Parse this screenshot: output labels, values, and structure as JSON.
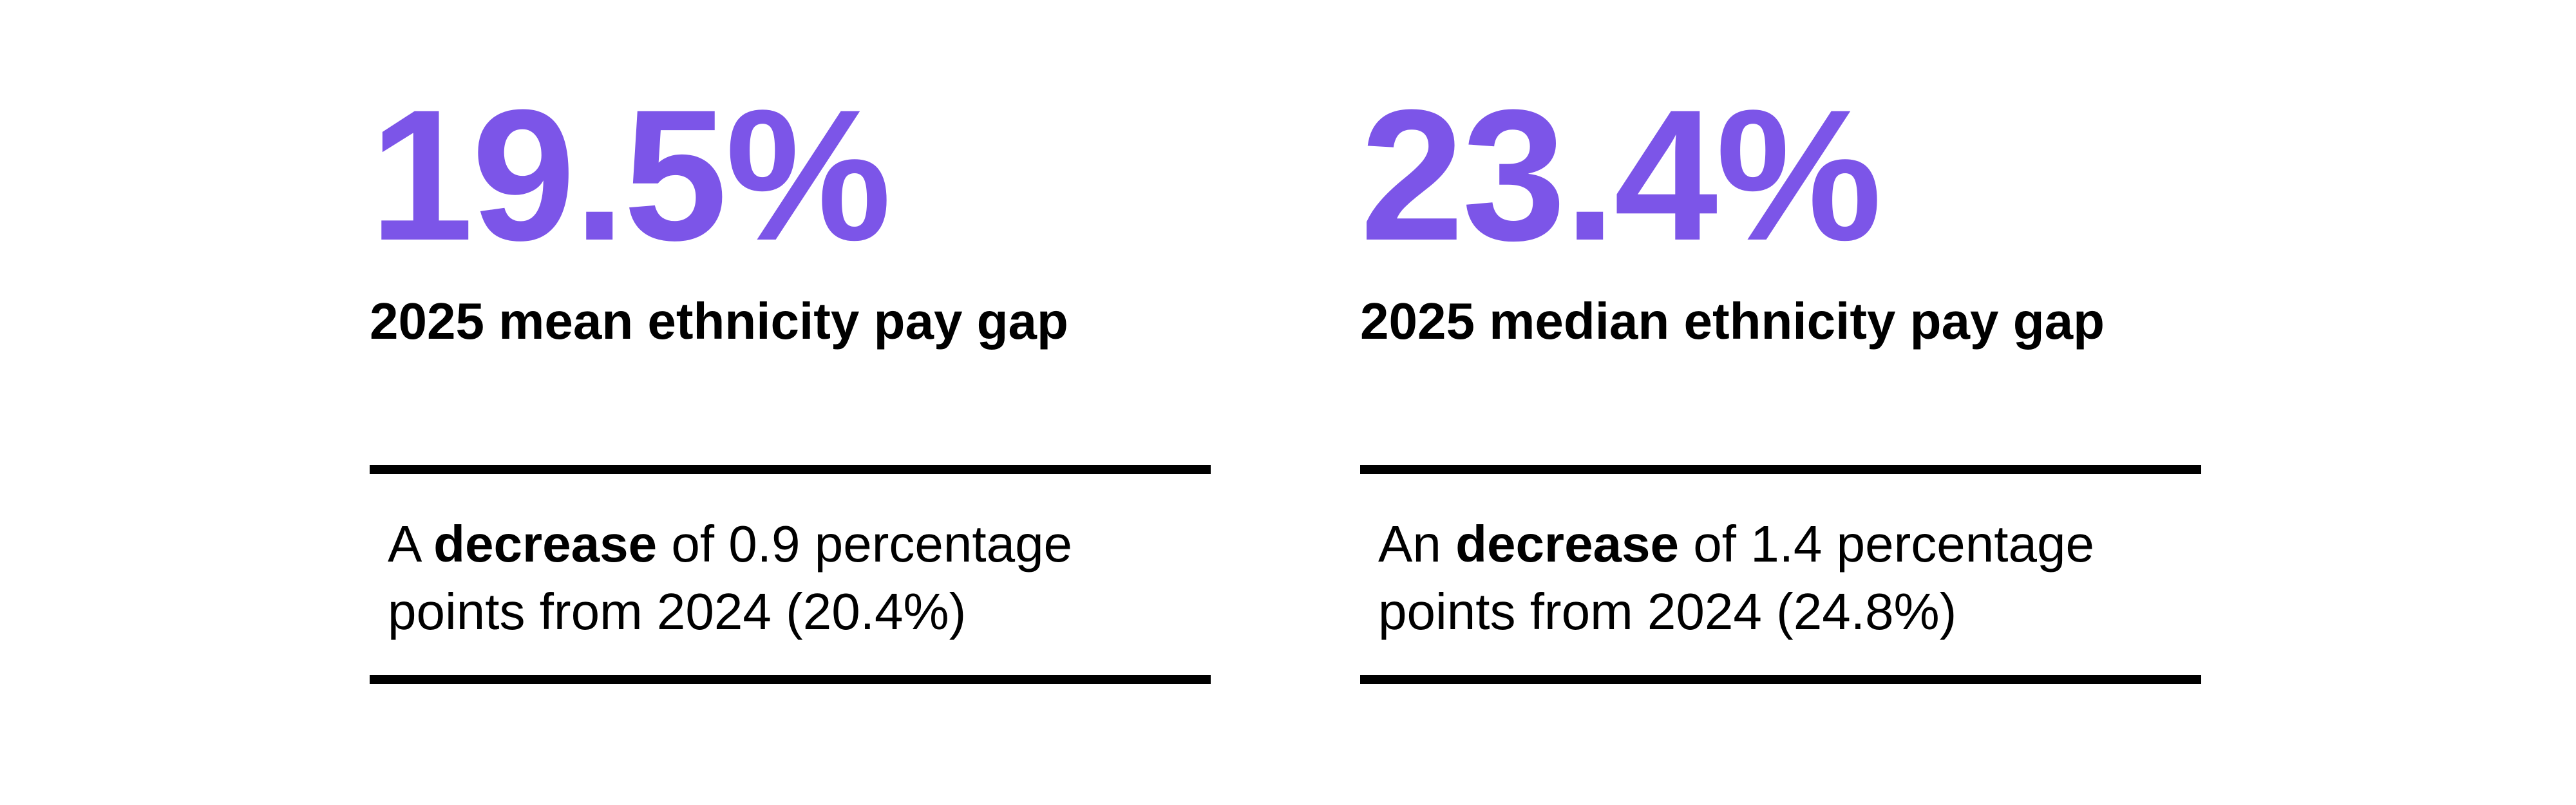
{
  "colors": {
    "accent_purple": "#7C55E8",
    "text_black": "#000000",
    "rule_black": "#000000",
    "background": "#FFFFFF"
  },
  "stats": [
    {
      "value": "19.5%",
      "label": "2025 mean ethnicity pay gap",
      "note_prefix": "A ",
      "note_bold": "decrease",
      "note_suffix": " of 0.9 percentage points from 2024 (20.4%)"
    },
    {
      "value": "23.4%",
      "label": "2025 median ethnicity pay gap",
      "note_prefix": "An ",
      "note_bold": "decrease",
      "note_suffix": " of 1.4 percentage points from 2024 (24.8%)"
    }
  ]
}
